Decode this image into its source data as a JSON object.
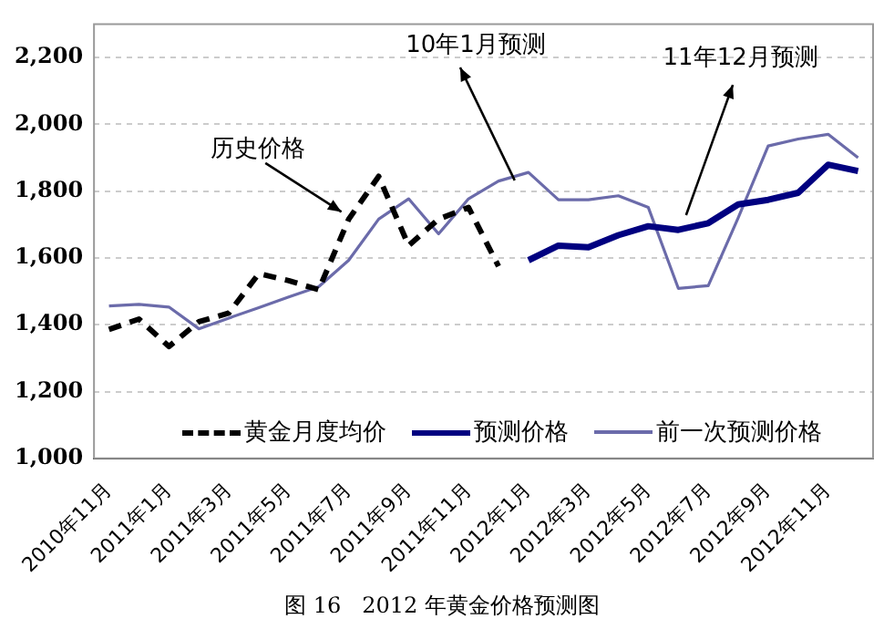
{
  "chart_data": {
    "type": "line",
    "title": "图 16   2012 年黄金价格预测图",
    "categories": [
      "2010年11月",
      null,
      "2011年1月",
      null,
      "2011年3月",
      null,
      "2011年5月",
      null,
      "2011年7月",
      null,
      "2011年9月",
      null,
      "2011年11月",
      null,
      "2012年1月",
      null,
      "2012年3月",
      null,
      "2012年5月",
      null,
      "2012年7月",
      null,
      "2012年9月",
      null,
      "2012年11月",
      null
    ],
    "series": [
      {
        "name": "黄金月度均价",
        "color": "#000000",
        "line_style": "dashed",
        "values": [
          1386,
          1417,
          1335,
          1409,
          1435,
          1553,
          1532,
          1505,
          1716,
          1844,
          1637,
          1716,
          1751,
          1575,
          null,
          null,
          null,
          null,
          null,
          null,
          null,
          null,
          null,
          null,
          null,
          null
        ]
      },
      {
        "name": "预测价格",
        "color": "#000080",
        "line_style": "solid",
        "values": [
          null,
          null,
          null,
          null,
          null,
          null,
          null,
          null,
          null,
          null,
          null,
          null,
          null,
          null,
          1593,
          1637,
          1632,
          1668,
          1695,
          1684,
          1704,
          1760,
          1774,
          1795,
          1879,
          1860
        ]
      },
      {
        "name": "前一次预测价格",
        "color": "#6b6baa",
        "line_style": "solid",
        "values": [
          1456,
          1461,
          1453,
          1388,
          1420,
          1451,
          1483,
          1514,
          1593,
          1716,
          1777,
          1672,
          1777,
          1830,
          1856,
          1774,
          1774,
          1786,
          1751,
          1509,
          1517,
          1720,
          1935,
          1956,
          1970,
          1900
        ]
      }
    ],
    "annotations": [
      {
        "text": "历史价格",
        "x": "2011年7月",
        "y": 1716
      },
      "10年1月预测",
      "11年12月预测"
    ],
    "ylim": [
      1000,
      2300
    ],
    "yticks": [
      {
        "value": 1000,
        "label": "1,000"
      },
      {
        "value": 1200,
        "label": "1,200"
      },
      {
        "value": 1400,
        "label": "1,400"
      },
      {
        "value": 1600,
        "label": "1,600"
      },
      {
        "value": 1800,
        "label": "1,800"
      },
      {
        "value": 2000,
        "label": "2,000"
      },
      {
        "value": 2200,
        "label": "2,200"
      }
    ],
    "grid": "y",
    "legend": "bottom",
    "marker": "none"
  }
}
